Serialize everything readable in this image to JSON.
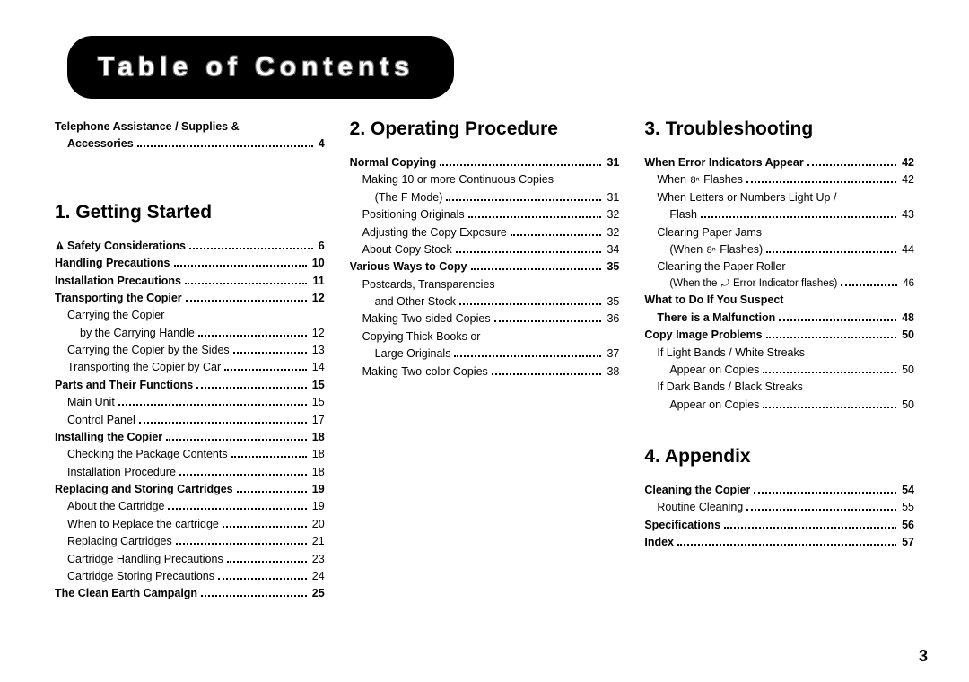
{
  "title": "Table of Contents",
  "page_number": "3",
  "colors": {
    "text": "#000000",
    "bg": "#ffffff"
  },
  "preface": [
    {
      "label": "Telephone Assistance / Supplies &",
      "bold": true,
      "indent": 0,
      "page": null,
      "continues": true
    },
    {
      "label": "Accessories",
      "bold": true,
      "indent": 1,
      "page": "4"
    }
  ],
  "col1": {
    "heading": "1. Getting Started",
    "items": [
      {
        "label": "Safety Considerations",
        "bold": true,
        "indent": 0,
        "page": "6",
        "icon": "warn"
      },
      {
        "label": "Handling Precautions",
        "bold": true,
        "indent": 0,
        "page": "10"
      },
      {
        "label": "Installation Precautions",
        "bold": true,
        "indent": 0,
        "page": "11"
      },
      {
        "label": "Transporting the Copier",
        "bold": true,
        "indent": 0,
        "page": "12"
      },
      {
        "label": "Carrying the Copier",
        "indent": 1,
        "page": null,
        "continues": true
      },
      {
        "label": "by the Carrying Handle",
        "indent": 2,
        "page": "12"
      },
      {
        "label": "Carrying the Copier by the Sides",
        "indent": 1,
        "page": "13"
      },
      {
        "label": "Transporting the Copier by Car",
        "indent": 1,
        "page": "14"
      },
      {
        "label": "Parts and Their Functions",
        "bold": true,
        "indent": 0,
        "page": "15"
      },
      {
        "label": "Main Unit",
        "indent": 1,
        "page": "15"
      },
      {
        "label": "Control Panel",
        "indent": 1,
        "page": "17"
      },
      {
        "label": "Installing the Copier",
        "bold": true,
        "indent": 0,
        "page": "18"
      },
      {
        "label": "Checking the Package Contents",
        "indent": 1,
        "page": "18"
      },
      {
        "label": "Installation Procedure",
        "indent": 1,
        "page": "18"
      },
      {
        "label": "Replacing and Storing Cartridges",
        "bold": true,
        "indent": 0,
        "page": "19"
      },
      {
        "label": "About the Cartridge",
        "indent": 1,
        "page": "19"
      },
      {
        "label": "When to Replace the cartridge",
        "indent": 1,
        "page": "20"
      },
      {
        "label": "Replacing Cartridges",
        "indent": 1,
        "page": "21"
      },
      {
        "label": "Cartridge Handling Precautions",
        "indent": 1,
        "page": "23"
      },
      {
        "label": "Cartridge Storing Precautions",
        "indent": 1,
        "page": "24"
      },
      {
        "label": "The Clean Earth Campaign",
        "bold": true,
        "indent": 0,
        "page": "25"
      }
    ]
  },
  "col2": {
    "heading": "2. Operating Procedure",
    "items": [
      {
        "label": "Normal Copying",
        "bold": true,
        "indent": 0,
        "page": "31"
      },
      {
        "label": "Making 10 or more Continuous Copies",
        "indent": 1,
        "page": null,
        "continues": true
      },
      {
        "label": "(The F Mode)",
        "indent": 2,
        "page": "31"
      },
      {
        "label": "Positioning Originals",
        "indent": 1,
        "page": "32"
      },
      {
        "label": "Adjusting the Copy Exposure",
        "indent": 1,
        "page": "32"
      },
      {
        "label": "About Copy Stock",
        "indent": 1,
        "page": "34"
      },
      {
        "label": "Various Ways to Copy",
        "bold": true,
        "indent": 0,
        "page": "35"
      },
      {
        "label": "Postcards, Transparencies",
        "indent": 1,
        "page": null,
        "continues": true
      },
      {
        "label": "and Other Stock",
        "indent": 2,
        "page": "35"
      },
      {
        "label": "Making Two-sided Copies",
        "indent": 1,
        "page": "36"
      },
      {
        "label": "Copying Thick Books or",
        "indent": 1,
        "page": null,
        "continues": true
      },
      {
        "label": "Large Originals",
        "indent": 2,
        "page": "37"
      },
      {
        "label": "Making Two-color Copies",
        "indent": 1,
        "page": "38"
      }
    ]
  },
  "col3a": {
    "heading": "3. Troubleshooting",
    "items": [
      {
        "label": "When Error Indicators Appear",
        "bold": true,
        "indent": 0,
        "page": "42"
      },
      {
        "label_pre": "When ",
        "icon": "jam",
        "label_post": " Flashes",
        "indent": 1,
        "page": "42"
      },
      {
        "label": "When Letters or Numbers Light Up /",
        "indent": 1,
        "page": null,
        "continues": true
      },
      {
        "label": "Flash",
        "indent": 2,
        "page": "43"
      },
      {
        "label": "Clearing Paper Jams",
        "indent": 1,
        "page": null,
        "continues": true
      },
      {
        "label_pre": "(When ",
        "icon": "jam",
        "label_post": " Flashes)",
        "indent": 2,
        "page": "44"
      },
      {
        "label": "Cleaning the Paper Roller",
        "indent": 1,
        "page": null,
        "continues": true
      },
      {
        "label_pre": "(When the ",
        "icon": "roller",
        "label_post": " Error Indicator flashes)",
        "indent": 2,
        "page": "46",
        "small": true
      },
      {
        "label": "What to Do If You Suspect",
        "bold": true,
        "indent": 0,
        "page": null,
        "continues": true
      },
      {
        "label": "There is a Malfunction",
        "bold": true,
        "indent": 1,
        "page": "48"
      },
      {
        "label": "Copy Image Problems",
        "bold": true,
        "indent": 0,
        "page": "50"
      },
      {
        "label": "If Light Bands / White Streaks",
        "indent": 1,
        "page": null,
        "continues": true
      },
      {
        "label": "Appear on Copies",
        "indent": 2,
        "page": "50"
      },
      {
        "label": "If Dark Bands / Black Streaks",
        "indent": 1,
        "page": null,
        "continues": true
      },
      {
        "label": "Appear on Copies",
        "indent": 2,
        "page": "50"
      }
    ]
  },
  "col3b": {
    "heading": "4. Appendix",
    "items": [
      {
        "label": "Cleaning the Copier",
        "bold": true,
        "indent": 0,
        "page": "54"
      },
      {
        "label": "Routine Cleaning",
        "indent": 1,
        "page": "55"
      },
      {
        "label": "Specifications",
        "bold": true,
        "indent": 0,
        "page": "56"
      },
      {
        "label": "Index",
        "bold": true,
        "indent": 0,
        "page": "57"
      }
    ]
  }
}
